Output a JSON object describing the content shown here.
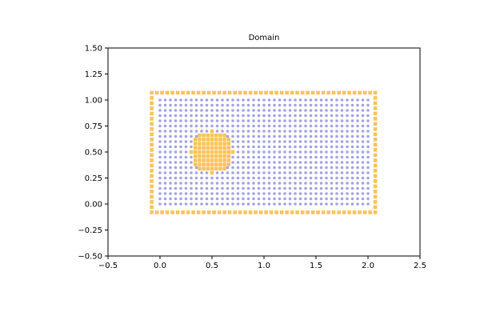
{
  "chart_data": {
    "type": "scatter",
    "title": "Domain",
    "xlabel": "",
    "ylabel": "",
    "xlim": [
      -0.5,
      2.5
    ],
    "ylim": [
      -0.5,
      1.5
    ],
    "xticks": [
      -0.5,
      0.0,
      0.5,
      1.0,
      1.5,
      2.0,
      2.5
    ],
    "xtick_labels": [
      "−0.5",
      "0.0",
      "0.5",
      "1.0",
      "1.5",
      "2.0",
      "2.5"
    ],
    "yticks": [
      -0.5,
      -0.25,
      0.0,
      0.25,
      0.5,
      0.75,
      1.0,
      1.25,
      1.5
    ],
    "ytick_labels": [
      "−0.50",
      "−0.25",
      "0.00",
      "0.25",
      "0.50",
      "0.75",
      "1.00",
      "1.25",
      "1.50"
    ],
    "grid": false,
    "legend": "none",
    "series": [
      {
        "marker": "square",
        "color": "#fbc35a",
        "description_of_points": "boundary",
        "x_range": [
          -0.08,
          2.08
        ],
        "y_range": [
          -0.08,
          1.08
        ],
        "spacing": 0.05,
        "circle_center": [
          0.5,
          0.5
        ],
        "circle_radius": 0.2
      },
      {
        "marker": "circle",
        "color": "#a3a3e0",
        "x_range": [
          0.0,
          2.0
        ],
        "y_range": [
          0.0,
          1.0
        ],
        "spacing": 0.05
      }
    ]
  }
}
